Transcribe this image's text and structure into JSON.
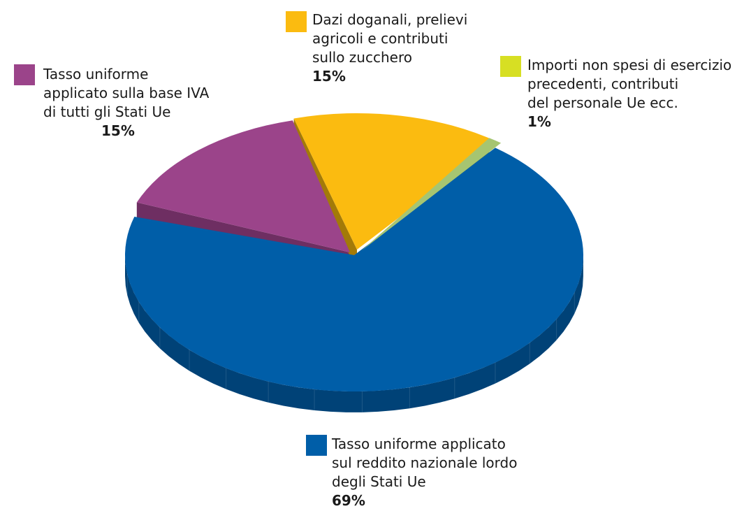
{
  "chart_data": {
    "type": "pie",
    "title": "",
    "slices": [
      {
        "key": "rnl",
        "label": "Tasso uniforme applicato\nsul reddito nazionale lordo\ndegli Stati Ue",
        "value": 69,
        "value_label": "69%",
        "color": "#005ea8",
        "side_color": "#004277"
      },
      {
        "key": "iva",
        "label": "Tasso uniforme\napplicato sulla base IVA\ndi tutti gli Stati Ue",
        "value": 15,
        "value_label": "15%",
        "color": "#9b448a",
        "side_color": "#6e2e62"
      },
      {
        "key": "dazi",
        "label": "Dazi doganali, prelievi\nagricoli e contributi\nsullo zucchero",
        "value": 15,
        "value_label": "15%",
        "color": "#fbbb10",
        "side_color": "#a37a08"
      },
      {
        "key": "altri",
        "label": "Importi non spesi di esercizio\nprecedenti, contributi\ndel personale Ue ecc.",
        "value": 1,
        "value_label": "1%",
        "color": "#a6c571",
        "side_color": "#6f8a44"
      }
    ],
    "legend_swatch_colors": {
      "rnl": "#005ea8",
      "iva": "#9b448a",
      "dazi": "#fbbb10",
      "altri": "#d7df23"
    },
    "legend_placement": "around"
  }
}
